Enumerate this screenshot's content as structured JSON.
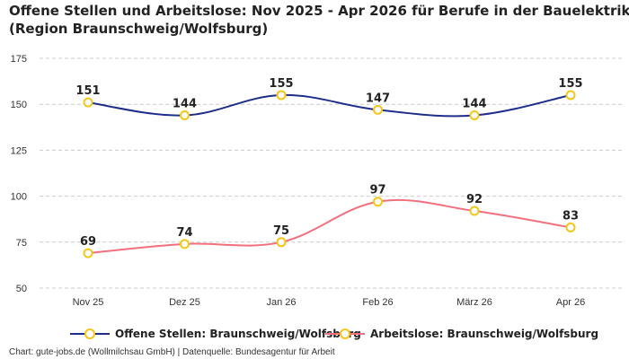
{
  "title_line1": "Offene Stellen und Arbeitslose: Nov 2025 - Apr 2026 für Berufe in der Bauelektrik",
  "title_line2": "(Region Braunschweig/Wolfsburg)",
  "source": "Chart: gute-jobs.de (Wollmilchsau GmbH) | Datenquelle: Bundesagentur für Arbeit",
  "colors": {
    "series1": "#1f2d8a",
    "series2": "#f2707e",
    "marker": "#f5c518",
    "grid": "#cccccc"
  },
  "chart_data": {
    "type": "line",
    "categories": [
      "Nov 25",
      "Dez 25",
      "Jan 26",
      "Feb 26",
      "März 26",
      "Apr 26"
    ],
    "ylim": [
      50,
      175
    ],
    "yticks": [
      50,
      75,
      100,
      125,
      150,
      175
    ],
    "grid": true,
    "legend": "bottom",
    "xlabel": "",
    "ylabel": "",
    "series": [
      {
        "name": "Offene Stellen: Braunschweig/Wolfsburg",
        "values": [
          151,
          144,
          155,
          147,
          144,
          155
        ]
      },
      {
        "name": "Arbeitslose: Braunschweig/Wolfsburg",
        "values": [
          69,
          74,
          75,
          97,
          92,
          83
        ]
      }
    ]
  }
}
